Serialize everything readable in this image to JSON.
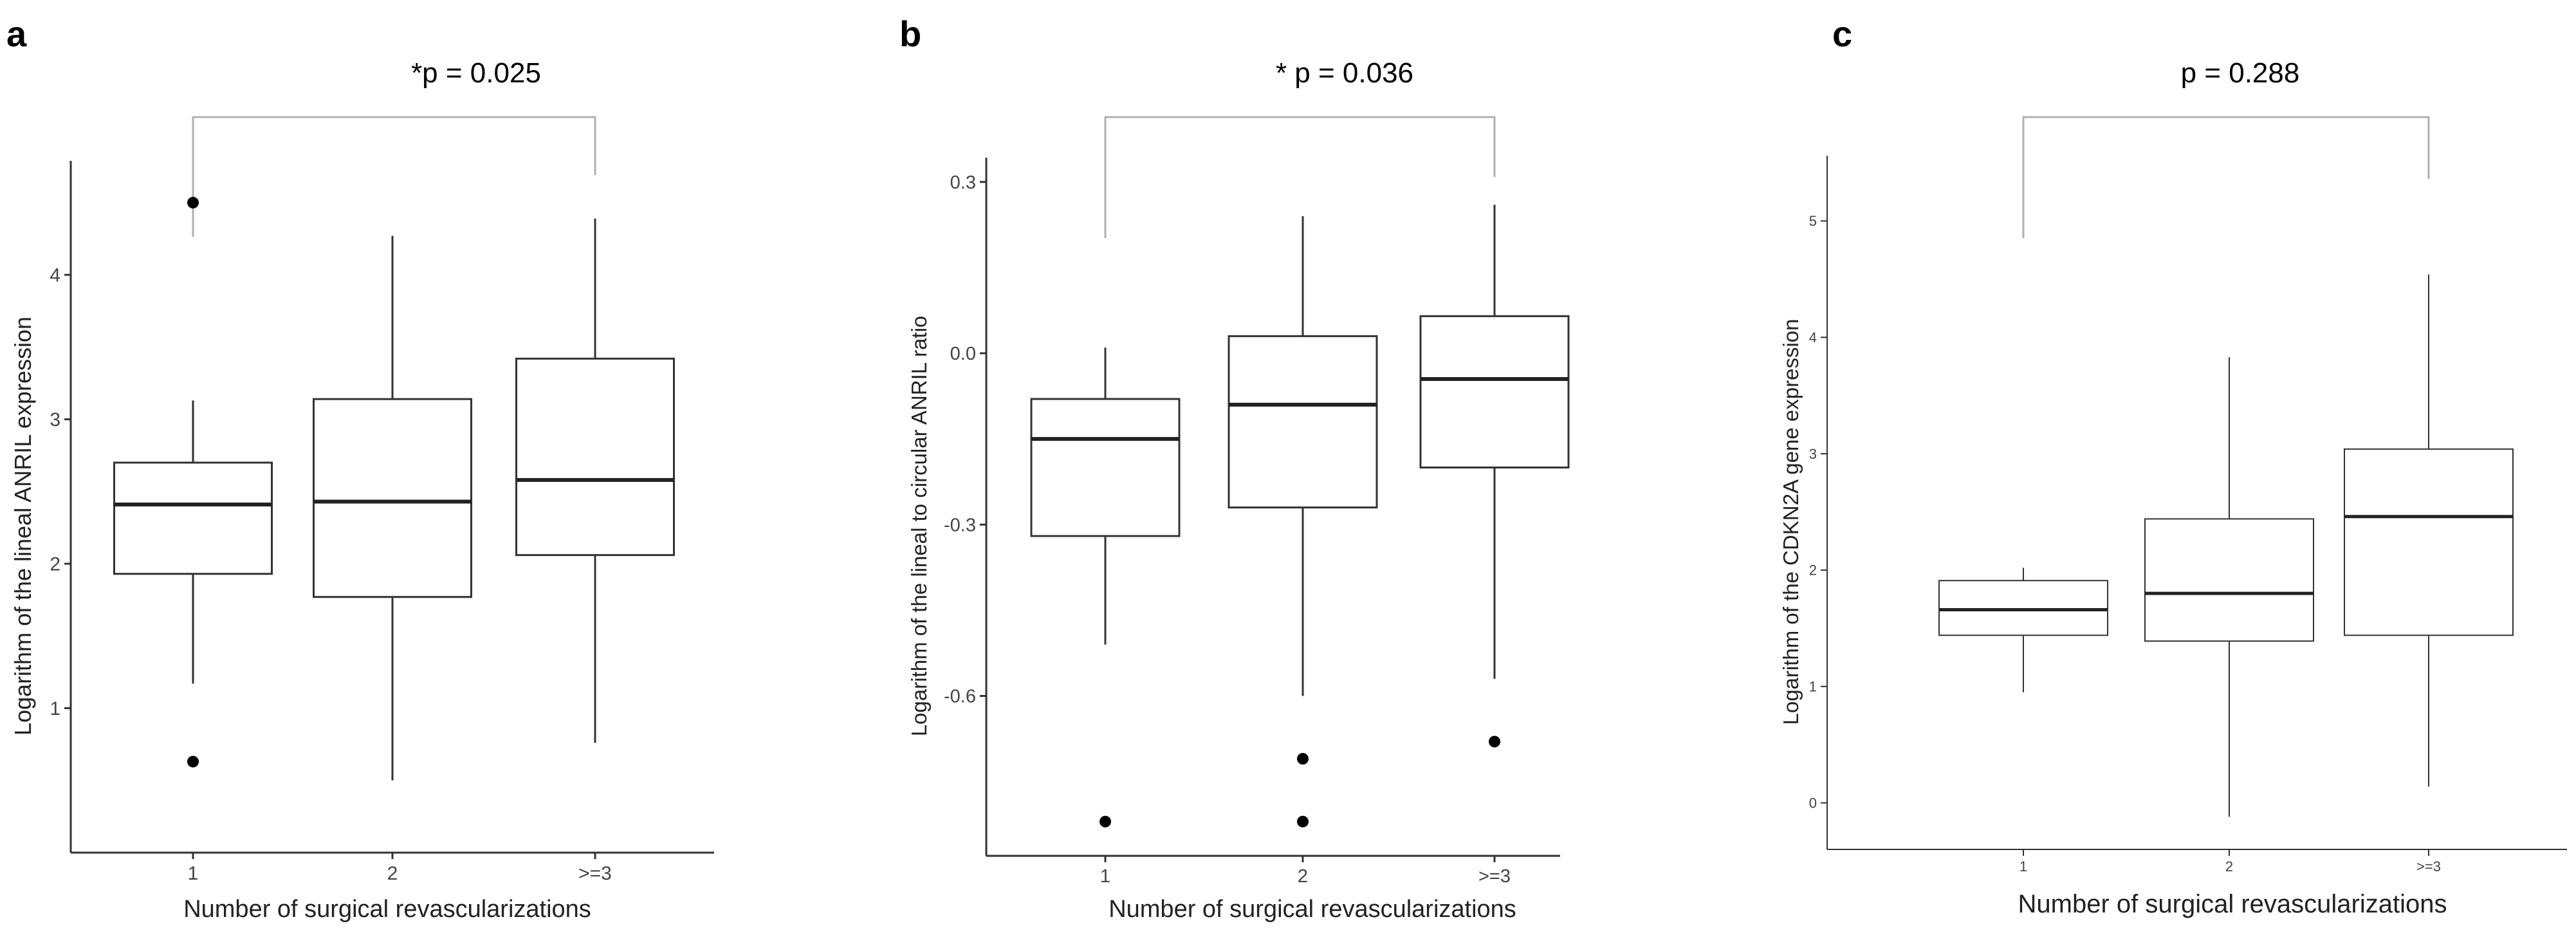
{
  "chart_data": [
    {
      "type": "box",
      "panel": "a",
      "annotation": "*p = 0.025",
      "xlabel": "Number of surgical revascularizations",
      "ylabel": "Logarithm of the lineal ANRIL expression",
      "categories": [
        "1",
        "2",
        ">=3"
      ],
      "ylim": [
        0.0,
        4.7
      ],
      "yticks": [
        1,
        2,
        3,
        4
      ],
      "ytick_labels": [
        "1",
        "2",
        "3",
        "4"
      ],
      "boxes": [
        {
          "category": "1",
          "whisker_low": 1.17,
          "q1": 1.93,
          "median": 2.41,
          "q3": 2.7,
          "whisker_high": 3.13,
          "outliers": [
            0.63,
            4.5
          ]
        },
        {
          "category": "2",
          "whisker_low": 0.5,
          "q1": 1.77,
          "median": 2.43,
          "q3": 3.14,
          "whisker_high": 4.27,
          "outliers": []
        },
        {
          "category": ">=3",
          "whisker_low": 0.76,
          "q1": 2.06,
          "median": 2.58,
          "q3": 3.42,
          "whisker_high": 4.39,
          "outliers": []
        }
      ],
      "comparison": [
        "1",
        ">=3"
      ]
    },
    {
      "type": "box",
      "panel": "b",
      "annotation": "* p = 0.036",
      "xlabel": "Number of surgical revascularizations",
      "ylabel": "Logarithm of the lineal to circular ANRIL ratio",
      "categories": [
        "1",
        "2",
        ">=3"
      ],
      "ylim": [
        -0.88,
        0.32
      ],
      "yticks": [
        -0.6,
        -0.3,
        0.0,
        0.3
      ],
      "ytick_labels": [
        "-0.6",
        "-0.3",
        "0.0",
        "0.3"
      ],
      "boxes": [
        {
          "category": "1",
          "whisker_low": -0.51,
          "q1": -0.32,
          "median": -0.15,
          "q3": -0.08,
          "whisker_high": 0.01,
          "outliers": [
            -0.82
          ]
        },
        {
          "category": "2",
          "whisker_low": -0.6,
          "q1": -0.27,
          "median": -0.09,
          "q3": 0.03,
          "whisker_high": 0.24,
          "outliers": [
            -0.71,
            -0.82
          ]
        },
        {
          "category": ">=3",
          "whisker_low": -0.57,
          "q1": -0.2,
          "median": -0.045,
          "q3": 0.065,
          "whisker_high": 0.26,
          "outliers": [
            -0.68
          ]
        }
      ],
      "comparison": [
        "1",
        ">=3"
      ]
    },
    {
      "type": "box",
      "panel": "c",
      "annotation": "p = 0.288",
      "xlabel": "Number of surgical revascularizations",
      "ylabel": "Logarithm of the CDKN2A gene expression",
      "categories": [
        "1",
        "2",
        ">=3"
      ],
      "ylim": [
        -0.4,
        5.45
      ],
      "yticks": [
        0,
        1,
        2,
        3,
        4,
        5
      ],
      "ytick_labels": [
        "0",
        "1",
        "2",
        "3",
        "4",
        "5"
      ],
      "boxes": [
        {
          "category": "1",
          "whisker_low": 0.95,
          "q1": 1.44,
          "median": 1.66,
          "q3": 1.91,
          "whisker_high": 2.02,
          "outliers": []
        },
        {
          "category": "2",
          "whisker_low": -0.12,
          "q1": 1.39,
          "median": 1.8,
          "q3": 2.44,
          "whisker_high": 3.83,
          "outliers": []
        },
        {
          "category": ">=3",
          "whisker_low": 0.14,
          "q1": 1.44,
          "median": 2.46,
          "q3": 3.04,
          "whisker_high": 4.54,
          "outliers": []
        }
      ],
      "comparison": [
        "1",
        ">=3"
      ]
    }
  ]
}
